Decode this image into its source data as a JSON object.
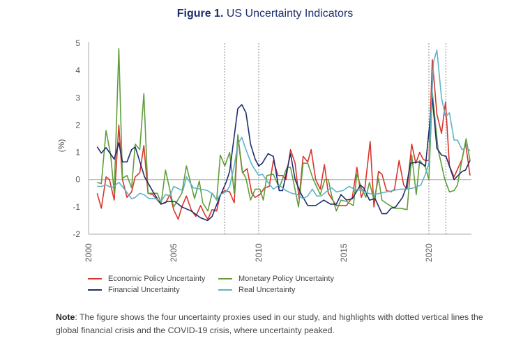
{
  "title": {
    "prefix": "Figure 1.",
    "text": "US Uncertainty Indicators"
  },
  "note": {
    "label": "Note",
    "text": ": The figure shows the four uncertainty proxies used in our study, and highlights with dotted vertical lines the global financial crisis and the COVID-19 crisis, where uncertainty peaked."
  },
  "chart_data": {
    "type": "line",
    "title": "US Uncertainty Indicators",
    "xlabel": "",
    "ylabel": "(%)",
    "xlim": [
      2000,
      2022.5
    ],
    "ylim": [
      -2,
      5
    ],
    "xticks": [
      2000,
      2005,
      2010,
      2015,
      2020
    ],
    "yticks": [
      -2,
      -1,
      0,
      1,
      2,
      3,
      4,
      5
    ],
    "grid": false,
    "zero_line": true,
    "vlines": [
      2008,
      2010,
      2020,
      2021
    ],
    "legend_position": "bottom",
    "series": [
      {
        "name": "Economic Policy Uncertainty",
        "color": "#d9342b",
        "x": [
          2000.51,
          2000.75,
          2001.03,
          2001.23,
          2001.51,
          2001.78,
          2001.99,
          2002.26,
          2002.53,
          2002.74,
          2003.01,
          2003.25,
          2003.49,
          2003.77,
          2004.04,
          2004.27,
          2004.52,
          2004.79,
          2005.0,
          2005.27,
          2005.48,
          2005.75,
          2006.03,
          2006.3,
          2006.58,
          2006.85,
          2007.01,
          2007.26,
          2007.53,
          2007.74,
          2008.01,
          2008.29,
          2008.56,
          2008.77,
          2009.04,
          2009.32,
          2009.59,
          2009.79,
          2010.07,
          2010.34,
          2010.62,
          2010.86,
          2011.13,
          2011.4,
          2011.6,
          2011.87,
          2012.14,
          2012.37,
          2012.61,
          2012.88,
          2013.08,
          2013.35,
          2013.62,
          2013.86,
          2014.09,
          2014.35,
          2014.56,
          2014.83,
          2015.16,
          2015.5,
          2015.77,
          2016.03,
          2016.24,
          2016.55,
          2016.77,
          2017.04,
          2017.24,
          2017.51,
          2017.78,
          2017.98,
          2018.25,
          2018.52,
          2018.72,
          2018.99,
          2019.23,
          2019.46,
          2019.66,
          2019.8,
          2020.0,
          2020.2,
          2020.47,
          2020.74,
          2020.98,
          2021.21,
          2021.48,
          2021.95,
          2022.15,
          2022.42
        ],
        "y": [
          -0.5,
          -1.05,
          0.1,
          0.0,
          -0.75,
          2.0,
          0.0,
          -0.65,
          -0.45,
          0.1,
          0.25,
          1.25,
          -0.5,
          -0.55,
          -0.75,
          -0.9,
          -0.85,
          -0.55,
          -1.1,
          -1.45,
          -1.0,
          -0.6,
          -1.1,
          -1.35,
          -0.95,
          -1.3,
          -1.45,
          -1.1,
          -1.15,
          -0.55,
          -0.4,
          -0.45,
          -0.85,
          1.55,
          0.25,
          0.4,
          -0.5,
          -0.65,
          -0.55,
          -0.3,
          -0.25,
          0.7,
          0.15,
          0.15,
          0.0,
          1.1,
          0.6,
          -0.7,
          0.85,
          0.65,
          1.1,
          0.0,
          -0.35,
          0.55,
          -0.5,
          -0.75,
          -0.95,
          -0.95,
          -0.95,
          -0.65,
          0.45,
          -0.65,
          -0.3,
          1.4,
          -1.0,
          0.3,
          0.2,
          -0.4,
          -0.45,
          -0.35,
          0.7,
          -0.2,
          -0.35,
          1.3,
          0.6,
          1.0,
          0.75,
          0.7,
          0.7,
          4.4,
          2.4,
          1.7,
          2.85,
          0.5,
          0.1,
          0.75,
          1.35,
          0.15
        ]
      },
      {
        "name": "Monetary Policy Uncertainty",
        "color": "#5f9e3a",
        "x": [
          2000.51,
          2000.75,
          2001.03,
          2001.3,
          2001.51,
          2001.78,
          2001.99,
          2002.26,
          2002.53,
          2002.74,
          2003.01,
          2003.25,
          2003.49,
          2003.77,
          2004.04,
          2004.27,
          2004.52,
          2005.0,
          2005.48,
          2005.75,
          2006.23,
          2006.51,
          2006.71,
          2007.01,
          2007.26,
          2007.53,
          2007.74,
          2008.01,
          2008.29,
          2008.56,
          2008.77,
          2009.04,
          2009.25,
          2009.52,
          2009.79,
          2010.07,
          2010.27,
          2010.48,
          2010.86,
          2011.2,
          2011.67,
          2011.87,
          2012.34,
          2012.61,
          2012.88,
          2013.21,
          2013.62,
          2013.88,
          2014.09,
          2014.29,
          2014.56,
          2014.83,
          2015.16,
          2015.56,
          2015.77,
          2016.03,
          2016.3,
          2016.51,
          2016.77,
          2017.04,
          2017.24,
          2017.58,
          2017.98,
          2018.32,
          2018.72,
          2018.99,
          2019.26,
          2019.46,
          2019.8,
          2020.0,
          2020.2,
          2020.54,
          2020.94,
          2021.21,
          2021.48,
          2021.68,
          2021.95,
          2022.19,
          2022.42
        ],
        "y": [
          -0.1,
          -0.15,
          1.8,
          0.9,
          -0.5,
          4.8,
          0.05,
          0.15,
          -0.3,
          1.3,
          1.1,
          3.15,
          -0.5,
          -0.5,
          -0.5,
          -0.85,
          0.35,
          -1.0,
          -0.5,
          0.5,
          -0.7,
          -0.05,
          -0.85,
          -1.15,
          -0.5,
          -0.75,
          0.9,
          0.5,
          1.0,
          -0.5,
          1.65,
          0.3,
          0.05,
          -0.75,
          -0.35,
          -0.35,
          -0.75,
          0.15,
          0.2,
          -0.3,
          0.45,
          0.45,
          -1.0,
          0.6,
          0.6,
          0.0,
          -0.55,
          0.0,
          0.0,
          -0.6,
          -1.15,
          -0.75,
          -0.8,
          -0.95,
          0.2,
          -0.3,
          -0.65,
          -0.1,
          -0.75,
          0.05,
          -0.75,
          -0.9,
          -1.05,
          -1.05,
          -1.1,
          0.9,
          -0.55,
          0.7,
          0.45,
          0.0,
          3.2,
          1.1,
          0.0,
          -0.45,
          -0.4,
          -0.2,
          0.75,
          1.5,
          0.7
        ]
      },
      {
        "name": "Financial Uncertainty",
        "color": "#1f2d6e",
        "x": [
          2000.51,
          2000.75,
          2001.03,
          2001.51,
          2001.78,
          2001.99,
          2002.26,
          2002.53,
          2002.74,
          2003.29,
          2003.84,
          2004.25,
          2004.66,
          2005.07,
          2005.48,
          2006.03,
          2006.58,
          2006.99,
          2007.26,
          2007.67,
          2008.08,
          2008.29,
          2008.77,
          2009.01,
          2009.25,
          2009.52,
          2009.79,
          2010.0,
          2010.21,
          2010.55,
          2010.86,
          2011.2,
          2011.4,
          2011.87,
          2012.14,
          2012.47,
          2012.88,
          2013.35,
          2013.82,
          2014.22,
          2014.56,
          2014.83,
          2015.16,
          2015.5,
          2015.97,
          2016.17,
          2016.51,
          2016.84,
          2017.24,
          2017.51,
          2017.78,
          2018.05,
          2018.45,
          2018.66,
          2018.92,
          2019.4,
          2019.8,
          2020.2,
          2020.47,
          2020.74,
          2021.01,
          2021.48,
          2021.95,
          2022.15,
          2022.42
        ],
        "y": [
          1.2,
          0.97,
          1.17,
          0.75,
          1.35,
          0.65,
          0.65,
          1.1,
          1.2,
          0.1,
          -0.5,
          -0.9,
          -0.8,
          -0.8,
          -1.0,
          -1.15,
          -1.4,
          -1.5,
          -1.35,
          -0.7,
          -0.1,
          0.3,
          2.6,
          2.75,
          2.45,
          1.3,
          0.75,
          0.5,
          0.6,
          0.95,
          0.85,
          -0.4,
          -0.4,
          0.95,
          0.0,
          -0.5,
          -0.95,
          -0.95,
          -0.75,
          -0.9,
          -0.9,
          -0.55,
          -0.75,
          -0.7,
          -0.2,
          -0.3,
          -0.75,
          -0.7,
          -1.25,
          -1.25,
          -1.05,
          -1.0,
          -0.65,
          -0.3,
          0.6,
          0.65,
          0.5,
          3.0,
          1.15,
          0.9,
          0.85,
          0.0,
          0.3,
          0.35,
          0.7
        ]
      },
      {
        "name": "Real Uncertainty",
        "color": "#5fb3c8",
        "x": [
          2000.51,
          2000.75,
          2001.03,
          2001.37,
          2001.78,
          2002.05,
          2002.53,
          2002.74,
          2003.01,
          2003.25,
          2003.56,
          2003.97,
          2004.25,
          2004.52,
          2004.79,
          2005.0,
          2005.34,
          2005.55,
          2005.75,
          2006.16,
          2006.58,
          2006.99,
          2007.33,
          2007.53,
          2007.74,
          2008.08,
          2008.29,
          2008.56,
          2008.77,
          2009.01,
          2009.25,
          2009.59,
          2010.0,
          2010.21,
          2010.55,
          2010.86,
          2011.2,
          2011.6,
          2011.94,
          2012.27,
          2012.61,
          2012.88,
          2013.15,
          2013.41,
          2013.68,
          2013.95,
          2014.29,
          2014.56,
          2014.96,
          2015.3,
          2015.63,
          2016.03,
          2016.44,
          2016.77,
          2017.11,
          2017.51,
          2017.92,
          2018.32,
          2018.72,
          2019.13,
          2019.53,
          2019.8,
          2020.0,
          2020.27,
          2020.47,
          2020.74,
          2020.98,
          2021.21,
          2021.48,
          2021.68,
          2021.95,
          2022.22,
          2022.42
        ],
        "y": [
          -0.25,
          -0.25,
          -0.2,
          -0.3,
          -0.1,
          -0.3,
          -0.7,
          -0.65,
          -0.5,
          -0.55,
          -0.7,
          -0.7,
          -0.8,
          -0.55,
          -0.6,
          -0.25,
          -0.35,
          -0.4,
          0.1,
          -0.3,
          -0.35,
          -0.4,
          -0.55,
          -0.75,
          -0.55,
          -0.45,
          -0.25,
          0.5,
          1.3,
          1.55,
          1.1,
          0.55,
          0.15,
          0.2,
          -0.1,
          -0.35,
          -0.2,
          -0.4,
          -0.5,
          -0.55,
          -0.7,
          -0.6,
          -0.35,
          -0.6,
          -0.6,
          -0.45,
          -0.3,
          -0.45,
          -0.4,
          -0.25,
          -0.35,
          -0.4,
          -0.5,
          -0.55,
          -0.5,
          -0.45,
          -0.4,
          -0.35,
          -0.35,
          -0.3,
          -0.2,
          0.2,
          0.6,
          4.3,
          4.75,
          3.0,
          2.3,
          2.45,
          1.45,
          1.45,
          1.1,
          1.2,
          1.05
        ]
      }
    ]
  }
}
